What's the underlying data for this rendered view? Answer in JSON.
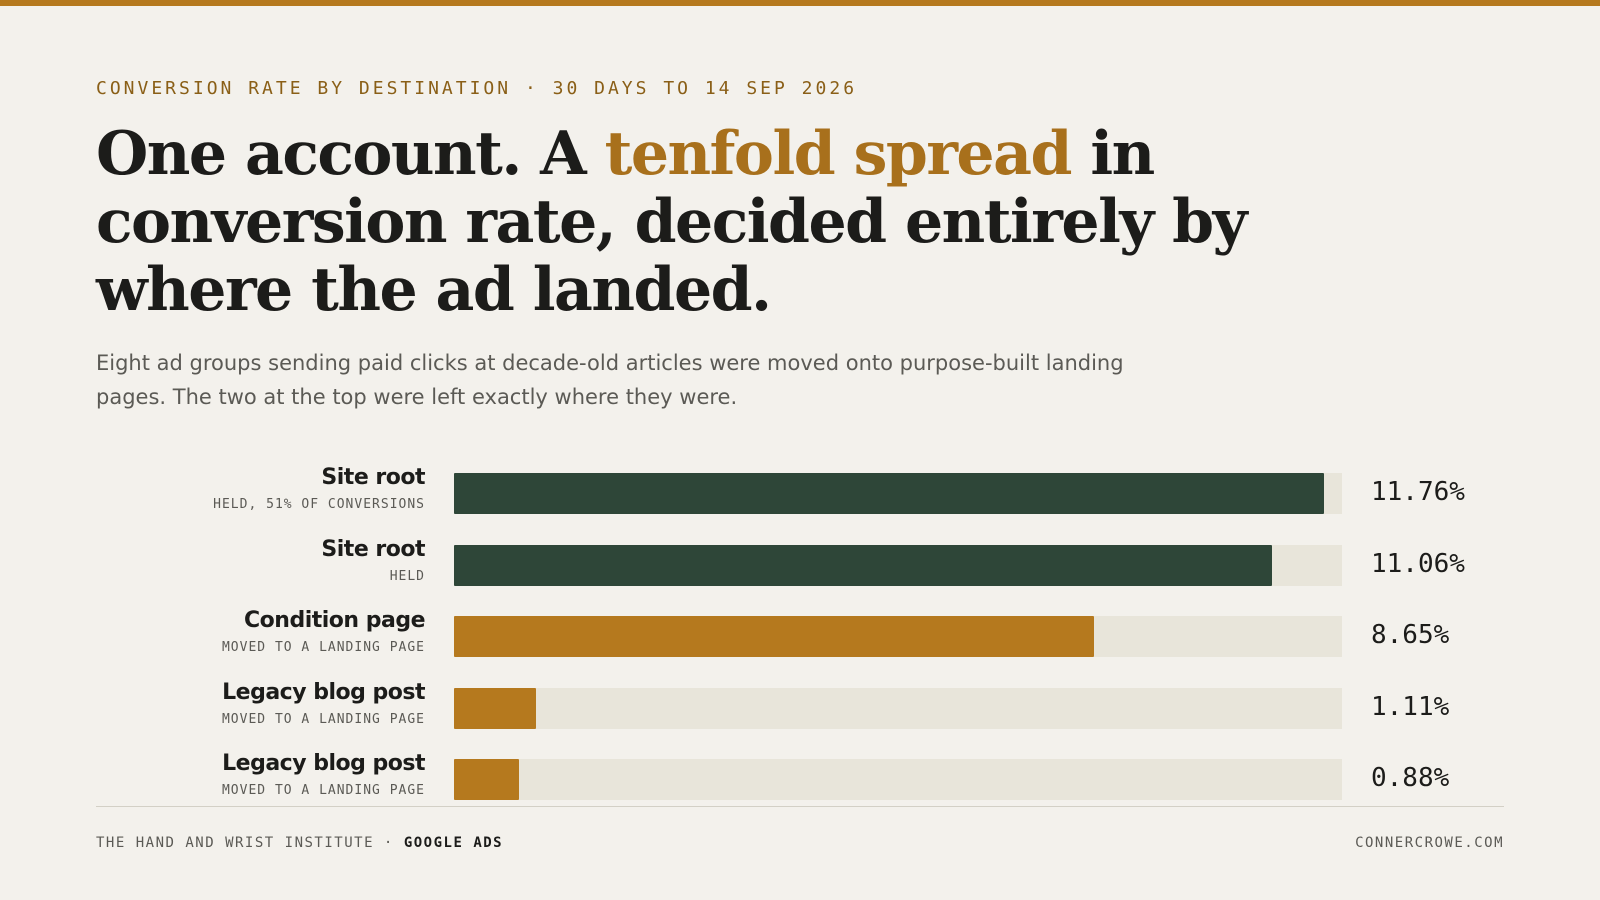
{
  "chart_data": {
    "type": "bar",
    "eyebrow": "CONVERSION RATE BY DESTINATION · 30 DAYS TO 14 SEP 2026",
    "title": [
      "One account. A",
      "tenfold spread",
      "in conversion rate, decided entirely by where the ad landed."
    ],
    "subtitle": "Eight ad groups sending paid clicks at decade-old articles were moved onto purpose-built landing pages. The two at the top were left exactly where they were.",
    "categories": [
      "Site root",
      "Site root",
      "Condition page",
      "Legacy blog post",
      "Legacy blog post"
    ],
    "sublabels": [
      "HELD, 51% OF CONVERSIONS",
      "HELD",
      "MOVED TO A LANDING PAGE",
      "MOVED TO A LANDING PAGE",
      "MOVED TO A LANDING PAGE"
    ],
    "values": [
      11.76,
      11.06,
      8.65,
      1.11,
      0.88
    ],
    "value_labels": [
      "11.76%",
      "11.06%",
      "8.65%",
      "1.11%",
      "0.88%"
    ],
    "colors": [
      "#2e4638",
      "#2e4638",
      "#b5791e",
      "#b5791e",
      "#b5791e"
    ],
    "xlim": [
      0,
      12
    ],
    "footer": {
      "left": "THE HAND AND WRIST INSTITUTE ·",
      "left_strong": "GOOGLE ADS",
      "right": "CONNERCROWE.COM"
    }
  }
}
